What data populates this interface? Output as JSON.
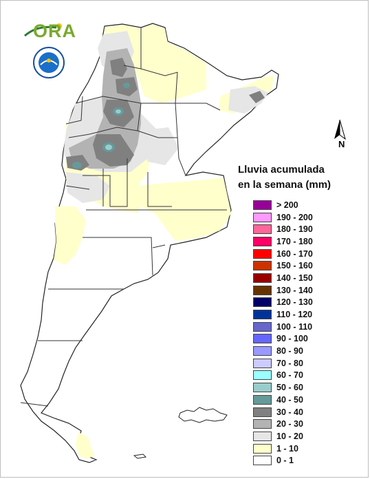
{
  "legend": {
    "title_line1": "Lluvia acumulada",
    "title_line2": "en la semana (mm)",
    "items": [
      {
        "label": "> 200",
        "color": "#990099"
      },
      {
        "label": "190 - 200",
        "color": "#ff99ff"
      },
      {
        "label": "180 - 190",
        "color": "#ff6699"
      },
      {
        "label": "170 - 180",
        "color": "#ff0066"
      },
      {
        "label": "160 - 170",
        "color": "#ff0000"
      },
      {
        "label": "150 - 160",
        "color": "#cc3300"
      },
      {
        "label": "140 - 150",
        "color": "#990000"
      },
      {
        "label": "130 - 140",
        "color": "#663300"
      },
      {
        "label": "120 - 130",
        "color": "#000066"
      },
      {
        "label": "110 - 120",
        "color": "#003399"
      },
      {
        "label": "100 - 110",
        "color": "#6666cc"
      },
      {
        "label": "90 - 100",
        "color": "#6666ff"
      },
      {
        "label": "80 - 90",
        "color": "#9999ff"
      },
      {
        "label": "70 - 80",
        "color": "#ccccff"
      },
      {
        "label": "60 - 70",
        "color": "#99ffff"
      },
      {
        "label": "50 - 60",
        "color": "#99cccc"
      },
      {
        "label": "40 - 50",
        "color": "#669999"
      },
      {
        "label": "30 - 40",
        "color": "#808080"
      },
      {
        "label": "20 - 30",
        "color": "#b3b3b3"
      },
      {
        "label": "10 - 20",
        "color": "#e6e6e6"
      },
      {
        "label": "1 - 10",
        "color": "#ffffcc"
      },
      {
        "label": "0 - 1",
        "color": "#ffffff"
      }
    ]
  },
  "north_arrow": {
    "label": "N"
  },
  "logos": {
    "ora": "ORA"
  }
}
